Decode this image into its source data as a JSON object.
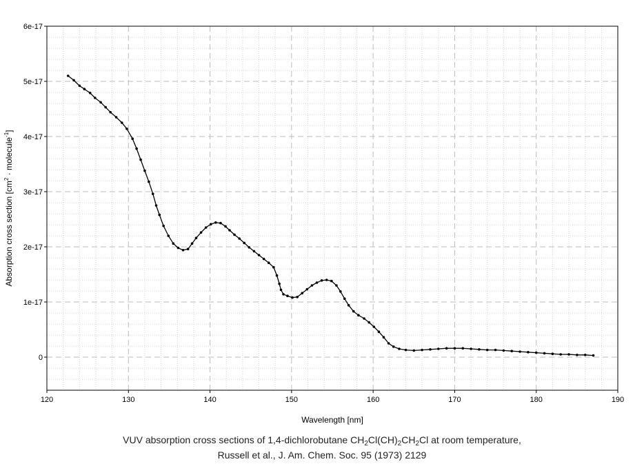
{
  "chart_data": {
    "type": "line",
    "xlabel": "Wavelength [nm]",
    "ylabel_parts": {
      "pre": "Absorption cross section [cm",
      "sup1": "2",
      "mid": " · molecule",
      "sup2": "-1",
      "post": "]"
    },
    "xlim": [
      120,
      190
    ],
    "ylim": [
      -6e-18,
      6e-17
    ],
    "x_ticks": [
      120,
      130,
      140,
      150,
      160,
      170,
      180,
      190
    ],
    "x_tick_labels": [
      "120",
      "130",
      "140",
      "150",
      "160",
      "170",
      "180",
      "190"
    ],
    "y_ticks": [
      0,
      1e-17,
      2e-17,
      3e-17,
      4e-17,
      5e-17,
      6e-17
    ],
    "y_tick_labels": [
      "0",
      "1e-17",
      "2e-17",
      "3e-17",
      "4e-17",
      "5e-17",
      "6e-17"
    ],
    "grid": true,
    "series_color": "#000000",
    "series": [
      {
        "x": [
          122.6,
          123.3,
          124.0,
          124.6,
          125.3,
          125.9,
          126.6,
          127.2,
          127.8,
          128.5,
          129.2,
          129.8,
          130.5,
          131.0,
          131.5,
          132.0,
          132.5,
          133.0,
          133.4,
          133.8,
          134.3,
          134.9,
          135.5,
          136.1,
          136.7,
          137.3,
          137.8,
          138.3,
          138.9,
          139.5,
          140.1,
          140.7,
          141.3,
          141.9,
          142.4,
          143.0,
          143.6,
          144.2,
          144.8,
          145.4,
          146.0,
          146.6,
          147.2,
          147.8,
          148.2,
          148.5,
          148.7,
          149.0,
          149.5,
          150.1,
          150.7,
          151.3,
          151.9,
          152.5,
          153.1,
          153.7,
          154.3,
          154.9,
          155.5,
          156.0,
          156.5,
          157.0,
          157.6,
          158.2,
          158.9,
          159.5,
          160.1,
          160.7,
          161.3,
          161.9,
          162.5,
          163.2,
          164.0,
          165.0,
          166.0,
          167.0,
          168.0,
          169.0,
          170.0,
          171.0,
          172.0,
          173.0,
          174.0,
          175.0,
          176.0,
          177.0,
          178.0,
          179.0,
          180.0,
          181.0,
          182.0,
          183.0,
          184.0,
          185.0,
          186.0,
          187.0
        ],
        "y": [
          5.1e-17,
          5.02e-17,
          4.92e-17,
          4.86e-17,
          4.79e-17,
          4.7e-17,
          4.62e-17,
          4.53e-17,
          4.44e-17,
          4.35e-17,
          4.25e-17,
          4.14e-17,
          3.96e-17,
          3.78e-17,
          3.58e-17,
          3.38e-17,
          3.18e-17,
          2.96e-17,
          2.75e-17,
          2.58e-17,
          2.38e-17,
          2.2e-17,
          2.06e-17,
          1.98e-17,
          1.94e-17,
          1.96e-17,
          2.06e-17,
          2.16e-17,
          2.26e-17,
          2.35e-17,
          2.41e-17,
          2.44e-17,
          2.43e-17,
          2.37e-17,
          2.3e-17,
          2.22e-17,
          2.15e-17,
          2.07e-17,
          1.99e-17,
          1.92e-17,
          1.85e-17,
          1.78e-17,
          1.71e-17,
          1.63e-17,
          1.48e-17,
          1.33e-17,
          1.22e-17,
          1.14e-17,
          1.11e-17,
          1.08e-17,
          1.09e-17,
          1.16e-17,
          1.23e-17,
          1.3e-17,
          1.35e-17,
          1.39e-17,
          1.4e-17,
          1.38e-17,
          1.3e-17,
          1.19e-17,
          1.06e-17,
          9.4e-18,
          8.3e-18,
          7.6e-18,
          7e-18,
          6.3e-18,
          5.5e-18,
          4.6e-18,
          3.6e-18,
          2.5e-18,
          1.9e-18,
          1.5e-18,
          1.3e-18,
          1.2e-18,
          1.3e-18,
          1.4e-18,
          1.5e-18,
          1.6e-18,
          1.6e-18,
          1.6e-18,
          1.5e-18,
          1.4e-18,
          1.3e-18,
          1.3e-18,
          1.2e-18,
          1.1e-18,
          1e-18,
          9e-19,
          8e-19,
          7e-19,
          6e-19,
          5e-19,
          5e-19,
          4e-19,
          4e-19,
          3e-19
        ]
      }
    ]
  },
  "caption": {
    "line1_pre": "VUV absorption cross sections of 1,4-dichlorobutane CH",
    "line1_sub1": "2",
    "line1_mid1": "Cl(CH)",
    "line1_sub2": "2",
    "line1_mid2": "CH",
    "line1_sub3": "2",
    "line1_post": "Cl at room temperature,",
    "line2": "Russell et al., J. Am. Chem. Soc. 95 (1973) 2129"
  }
}
